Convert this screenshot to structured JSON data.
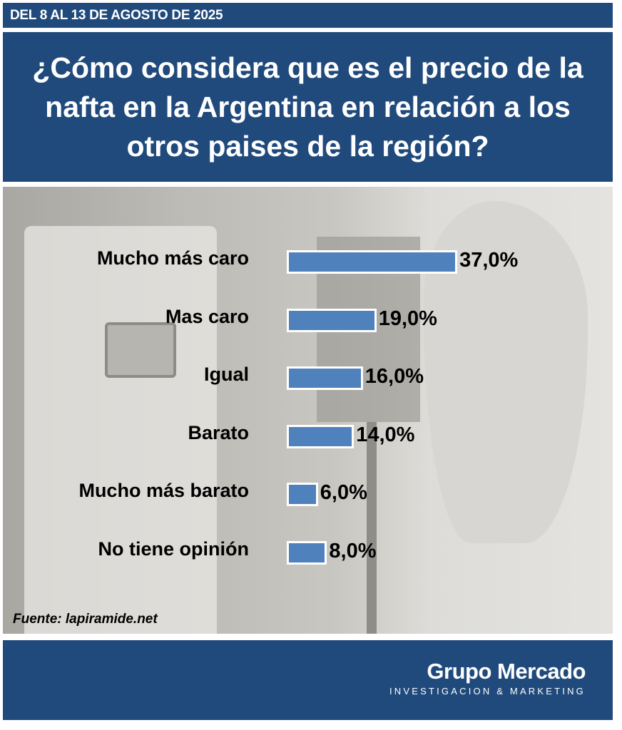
{
  "header": {
    "date_range": "DEL 8 AL 13 DE AGOSTO DE 2025"
  },
  "source": "Fuente: lapiramide.net",
  "brand": {
    "name": "Grupo Mercado",
    "tagline": "INVESTIGACION & MARKETING"
  },
  "colors": {
    "band": "#204a7c",
    "bar": "#4f81bd"
  },
  "chart_data": {
    "type": "bar",
    "orientation": "horizontal",
    "title": "¿Cómo considera que es el precio de la nafta en la Argentina en relación a los otros paises de la región?",
    "categories": [
      "Mucho más caro",
      "Mas caro",
      "Igual",
      "Barato",
      "Mucho más barato",
      "No tiene opinión"
    ],
    "values": [
      37.0,
      19.0,
      16.0,
      14.0,
      6.0,
      8.0
    ],
    "value_labels": [
      "37,0%",
      "19,0%",
      "16,0%",
      "14,0%",
      "6,0%",
      "8,0%"
    ],
    "xlabel": "",
    "ylabel": "",
    "xlim": [
      0,
      40
    ],
    "grid": false
  }
}
